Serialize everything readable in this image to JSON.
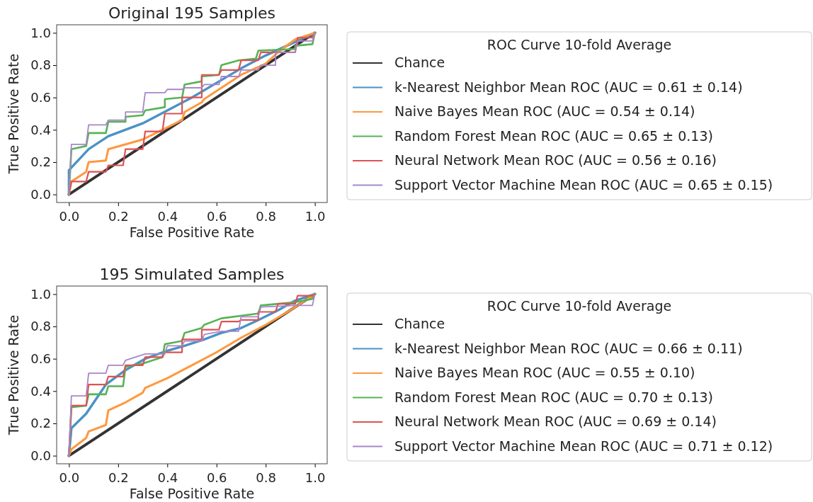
{
  "chart_data": [
    {
      "type": "line",
      "title": "Original 195 Samples",
      "xlabel": "False Positive Rate",
      "ylabel": "True Positive Rate",
      "legend_title": "ROC Curve 10-fold Average",
      "legend": "right",
      "line_style": "solid",
      "xlim": [
        -0.05,
        1.05
      ],
      "ylim": [
        -0.05,
        1.05
      ],
      "xticks": [
        {
          "value": 0,
          "label": "0.0"
        },
        {
          "value": 0.2,
          "label": "0.2"
        },
        {
          "value": 0.4,
          "label": "0.4"
        },
        {
          "value": 0.6,
          "label": "0.6"
        },
        {
          "value": 0.8,
          "label": "0.8"
        },
        {
          "value": 1,
          "label": "1.0"
        }
      ],
      "yticks": [
        {
          "value": 0,
          "label": "0.0"
        },
        {
          "value": 0.2,
          "label": "0.2"
        },
        {
          "value": 0.4,
          "label": "0.4"
        },
        {
          "value": 0.6,
          "label": "0.6"
        },
        {
          "value": 0.8,
          "label": "0.8"
        },
        {
          "value": 1,
          "label": "1.0"
        }
      ],
      "series": [
        {
          "name": "Chance",
          "color": "#333333",
          "x": [
            0,
            1
          ],
          "values": [
            0,
            1
          ]
        },
        {
          "name": "k-Nearest Neighbor Mean ROC (AUC = 0.61 ± 0.14)",
          "color": "#4b92c3",
          "x": [
            0,
            0,
            0.08,
            0.16,
            0.3,
            0.4,
            0.5,
            0.6,
            0.7,
            0.8,
            0.9,
            1
          ],
          "values": [
            0,
            0.15,
            0.28,
            0.36,
            0.44,
            0.52,
            0.6,
            0.69,
            0.78,
            0.86,
            0.93,
            1
          ]
        },
        {
          "name": "Naive Bayes Mean ROC (AUC = 0.54 ± 0.14)",
          "color": "#ff983e",
          "x": [
            0,
            0.01,
            0.07,
            0.08,
            0.15,
            0.16,
            0.3,
            0.38,
            0.46,
            0.47,
            0.54,
            0.55,
            0.6,
            0.62,
            0.7,
            0.8,
            0.85,
            0.92,
            1
          ],
          "values": [
            0,
            0.08,
            0.14,
            0.2,
            0.21,
            0.28,
            0.34,
            0.4,
            0.46,
            0.51,
            0.57,
            0.59,
            0.64,
            0.66,
            0.74,
            0.81,
            0.88,
            0.96,
            1
          ]
        },
        {
          "name": "Random Forest Mean ROC (AUC = 0.65 ± 0.13)",
          "color": "#56b356",
          "x": [
            0,
            0.01,
            0.07,
            0.08,
            0.15,
            0.16,
            0.23,
            0.23,
            0.3,
            0.31,
            0.39,
            0.39,
            0.46,
            0.47,
            0.54,
            0.54,
            0.61,
            0.62,
            0.69,
            0.76,
            0.77,
            0.92,
            0.92,
            0.99,
            1
          ],
          "values": [
            0,
            0.28,
            0.3,
            0.38,
            0.38,
            0.45,
            0.45,
            0.48,
            0.49,
            0.52,
            0.54,
            0.59,
            0.6,
            0.68,
            0.7,
            0.73,
            0.74,
            0.8,
            0.83,
            0.84,
            0.89,
            0.9,
            0.92,
            0.93,
            1
          ]
        },
        {
          "name": "Neural Network Mean ROC (AUC = 0.56 ± 0.16)",
          "color": "#de5253",
          "x": [
            0,
            0.01,
            0.07,
            0.08,
            0.15,
            0.16,
            0.22,
            0.23,
            0.3,
            0.31,
            0.38,
            0.39,
            0.46,
            0.46,
            0.54,
            0.54,
            0.61,
            0.62,
            0.69,
            0.7,
            0.77,
            0.78,
            0.92,
            0.93,
            0.99,
            1
          ],
          "values": [
            0,
            0.08,
            0.08,
            0.14,
            0.14,
            0.18,
            0.18,
            0.28,
            0.28,
            0.39,
            0.39,
            0.5,
            0.5,
            0.6,
            0.6,
            0.74,
            0.74,
            0.77,
            0.77,
            0.83,
            0.83,
            0.88,
            0.88,
            0.97,
            0.97,
            1
          ]
        },
        {
          "name": "Support Vector Machine Mean ROC (AUC = 0.65 ± 0.15)",
          "color": "#a985ca",
          "x": [
            0,
            0.01,
            0.07,
            0.08,
            0.15,
            0.16,
            0.23,
            0.23,
            0.3,
            0.31,
            0.39,
            0.4,
            0.46,
            0.47,
            0.54,
            0.55,
            0.61,
            0.62,
            0.69,
            0.7,
            0.77,
            0.78,
            0.84,
            0.84,
            0.92,
            0.93,
            0.99,
            1
          ],
          "values": [
            0,
            0.31,
            0.31,
            0.43,
            0.43,
            0.46,
            0.46,
            0.51,
            0.51,
            0.63,
            0.63,
            0.65,
            0.65,
            0.66,
            0.66,
            0.68,
            0.68,
            0.73,
            0.73,
            0.77,
            0.77,
            0.8,
            0.8,
            0.88,
            0.88,
            0.95,
            0.95,
            1
          ]
        }
      ]
    },
    {
      "type": "line",
      "title": "195 Simulated Samples",
      "xlabel": "False Positive Rate",
      "ylabel": "True Positive Rate",
      "legend_title": "ROC Curve 10-fold Average",
      "legend": "right",
      "line_style": "solid",
      "xlim": [
        -0.05,
        1.05
      ],
      "ylim": [
        -0.05,
        1.05
      ],
      "xticks": [
        {
          "value": 0,
          "label": "0.0"
        },
        {
          "value": 0.2,
          "label": "0.2"
        },
        {
          "value": 0.4,
          "label": "0.4"
        },
        {
          "value": 0.6,
          "label": "0.6"
        },
        {
          "value": 0.8,
          "label": "0.8"
        },
        {
          "value": 1,
          "label": "1.0"
        }
      ],
      "yticks": [
        {
          "value": 0,
          "label": "0.0"
        },
        {
          "value": 0.2,
          "label": "0.2"
        },
        {
          "value": 0.4,
          "label": "0.4"
        },
        {
          "value": 0.6,
          "label": "0.6"
        },
        {
          "value": 0.8,
          "label": "0.8"
        },
        {
          "value": 1,
          "label": "1.0"
        }
      ],
      "series": [
        {
          "name": "Chance",
          "color": "#333333",
          "x": [
            0,
            1
          ],
          "values": [
            0,
            1
          ]
        },
        {
          "name": "k-Nearest Neighbor Mean ROC (AUC = 0.66 ± 0.11)",
          "color": "#4b92c3",
          "x": [
            0,
            0.01,
            0.07,
            0.15,
            0.23,
            0.31,
            0.4,
            0.47,
            0.55,
            0.62,
            0.7,
            0.77,
            0.85,
            0.92,
            1
          ],
          "values": [
            0,
            0.17,
            0.26,
            0.44,
            0.53,
            0.6,
            0.65,
            0.68,
            0.72,
            0.76,
            0.79,
            0.84,
            0.9,
            0.96,
            1
          ]
        },
        {
          "name": "Naive Bayes Mean ROC (AUC = 0.55 ± 0.10)",
          "color": "#ff983e",
          "x": [
            0,
            0.01,
            0.07,
            0.08,
            0.15,
            0.16,
            0.23,
            0.3,
            0.31,
            0.4,
            0.5,
            0.6,
            0.7,
            0.8,
            0.9,
            0.96,
            1
          ],
          "values": [
            0,
            0.04,
            0.11,
            0.15,
            0.19,
            0.28,
            0.33,
            0.39,
            0.42,
            0.48,
            0.56,
            0.64,
            0.73,
            0.81,
            0.9,
            0.96,
            1
          ]
        },
        {
          "name": "Random Forest Mean ROC (AUC = 0.70 ± 0.13)",
          "color": "#56b356",
          "x": [
            0,
            0.01,
            0.07,
            0.08,
            0.15,
            0.16,
            0.22,
            0.23,
            0.3,
            0.38,
            0.39,
            0.46,
            0.47,
            0.54,
            0.55,
            0.62,
            0.77,
            0.78,
            0.85,
            0.92,
            0.99,
            1
          ],
          "values": [
            0,
            0.3,
            0.31,
            0.38,
            0.38,
            0.43,
            0.43,
            0.55,
            0.57,
            0.61,
            0.69,
            0.71,
            0.76,
            0.79,
            0.81,
            0.85,
            0.88,
            0.93,
            0.94,
            0.95,
            0.97,
            1
          ]
        },
        {
          "name": "Neural Network Mean ROC (AUC = 0.69 ± 0.14)",
          "color": "#de5253",
          "x": [
            0,
            0.01,
            0.07,
            0.08,
            0.15,
            0.16,
            0.22,
            0.23,
            0.3,
            0.31,
            0.38,
            0.39,
            0.46,
            0.46,
            0.54,
            0.54,
            0.61,
            0.62,
            0.69,
            0.7,
            0.77,
            0.77,
            0.84,
            0.85,
            0.92,
            0.93,
            0.99,
            1
          ],
          "values": [
            0,
            0.31,
            0.31,
            0.44,
            0.44,
            0.49,
            0.49,
            0.56,
            0.56,
            0.61,
            0.61,
            0.64,
            0.64,
            0.72,
            0.72,
            0.78,
            0.78,
            0.83,
            0.83,
            0.84,
            0.84,
            0.89,
            0.89,
            0.94,
            0.94,
            0.99,
            0.99,
            1
          ]
        },
        {
          "name": "Support Vector Machine Mean ROC (AUC = 0.71 ± 0.12)",
          "color": "#a985ca",
          "x": [
            0,
            0.01,
            0.07,
            0.08,
            0.15,
            0.16,
            0.22,
            0.23,
            0.31,
            0.39,
            0.4,
            0.46,
            0.47,
            0.54,
            0.55,
            0.62,
            0.69,
            0.7,
            0.77,
            0.78,
            0.92,
            0.99,
            1
          ],
          "values": [
            0,
            0.37,
            0.37,
            0.51,
            0.51,
            0.56,
            0.56,
            0.59,
            0.63,
            0.63,
            0.68,
            0.68,
            0.71,
            0.71,
            0.75,
            0.77,
            0.77,
            0.86,
            0.86,
            0.92,
            0.93,
            0.93,
            1
          ]
        }
      ]
    }
  ]
}
